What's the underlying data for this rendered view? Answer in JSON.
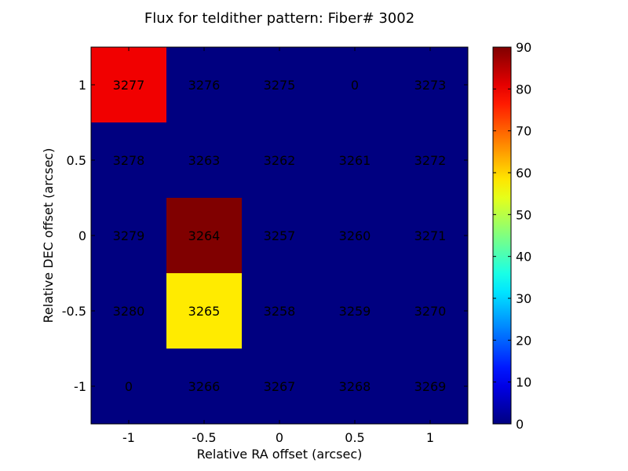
{
  "chart_data": {
    "type": "heatmap",
    "title": "Flux for teldither pattern: Fiber# 3002",
    "xlabel": "Relative RA offset (arcsec)",
    "ylabel": "Relative DEC offset (arcsec)",
    "x": [
      -1,
      -0.5,
      0,
      0.5,
      1
    ],
    "y": [
      1,
      0.5,
      0,
      -0.5,
      -1
    ],
    "x_tick_labels": [
      "-1",
      "-0.5",
      "0",
      "0.5",
      "1"
    ],
    "y_tick_labels": [
      "1",
      "0.5",
      "0",
      "-0.5",
      "-1"
    ],
    "xlim": [
      -1.25,
      1.25
    ],
    "ylim": [
      -1.25,
      1.25
    ],
    "colormap": "jet",
    "vmin": 0,
    "vmax": 90,
    "values": [
      [
        80,
        0,
        0,
        0,
        0
      ],
      [
        0,
        0,
        0,
        0,
        0
      ],
      [
        0,
        90,
        0,
        0,
        0
      ],
      [
        0,
        58,
        0,
        0,
        0
      ],
      [
        0,
        0,
        0,
        0,
        0
      ]
    ],
    "cell_labels": [
      [
        "3277",
        "3276",
        "3275",
        "0",
        "3273"
      ],
      [
        "3278",
        "3263",
        "3262",
        "3261",
        "3272"
      ],
      [
        "3279",
        "3264",
        "3257",
        "3260",
        "3271"
      ],
      [
        "3280",
        "3265",
        "3258",
        "3259",
        "3270"
      ],
      [
        "0",
        "3266",
        "3267",
        "3268",
        "3269"
      ]
    ],
    "colorbar_ticks": [
      0,
      10,
      20,
      30,
      40,
      50,
      60,
      70,
      80,
      90
    ]
  }
}
